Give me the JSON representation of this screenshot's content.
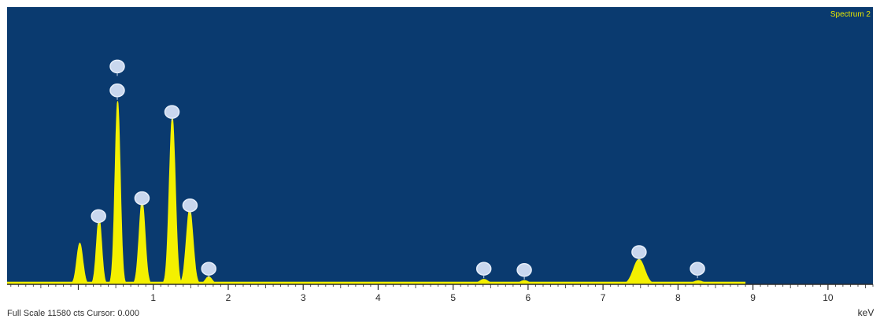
{
  "chart_data": {
    "type": "area",
    "spectrum_label": "Spectrum 2",
    "xlabel": "keV",
    "xlim": [
      -0.95,
      10.6
    ],
    "ylim": [
      0,
      11580
    ],
    "x_ticks": [
      1,
      2,
      3,
      4,
      5,
      6,
      7,
      8,
      9,
      10
    ],
    "footer": "Full Scale 11580 cts Cursor: 0.000",
    "peaks": [
      {
        "x": 0.02,
        "y": 1720,
        "w": 0.04
      },
      {
        "x": 0.277,
        "y": 2780,
        "w": 0.035
      },
      {
        "x": 0.525,
        "y": 7650,
        "w": 0.035
      },
      {
        "x": 0.851,
        "y": 3500,
        "w": 0.04
      },
      {
        "x": 1.254,
        "y": 7000,
        "w": 0.04
      },
      {
        "x": 1.486,
        "y": 3150,
        "w": 0.045
      },
      {
        "x": 1.74,
        "y": 320,
        "w": 0.045
      },
      {
        "x": 5.41,
        "y": 210,
        "w": 0.06
      },
      {
        "x": 5.95,
        "y": 160,
        "w": 0.06
      },
      {
        "x": 7.48,
        "y": 1050,
        "w": 0.075
      },
      {
        "x": 8.27,
        "y": 150,
        "w": 0.07
      }
    ],
    "background_level": 110,
    "markers": [
      {
        "x": 0.27,
        "y": 2850
      },
      {
        "x": 0.52,
        "y": 8100
      },
      {
        "x": 0.52,
        "y": 9100
      },
      {
        "x": 0.85,
        "y": 3600
      },
      {
        "x": 1.25,
        "y": 7200
      },
      {
        "x": 1.49,
        "y": 3300
      },
      {
        "x": 1.74,
        "y": 650
      },
      {
        "x": 5.41,
        "y": 650
      },
      {
        "x": 5.95,
        "y": 600
      },
      {
        "x": 7.48,
        "y": 1350
      },
      {
        "x": 8.26,
        "y": 650
      }
    ],
    "colors": {
      "plot_background": "#0a3a6f",
      "spectrum": "#f4f000",
      "marker": "#c9d7ee",
      "axis": "#2b2b2b"
    }
  }
}
